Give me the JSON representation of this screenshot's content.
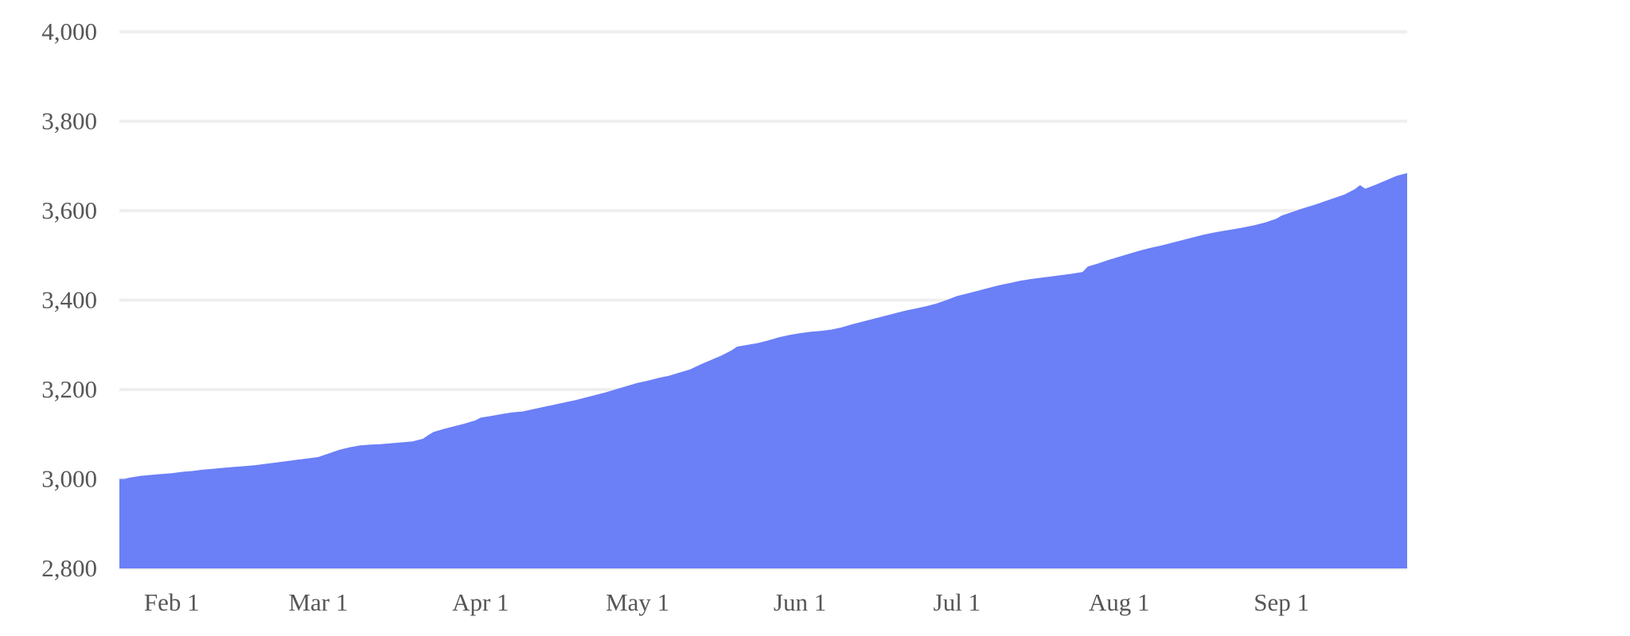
{
  "chart_data": {
    "type": "area",
    "title": "",
    "xlabel": "",
    "ylabel": "",
    "legend": null,
    "grid": "horizontal-only",
    "ylim": [
      2800,
      4000
    ],
    "y_ticks": [
      {
        "label": "4,000",
        "value": 4000
      },
      {
        "label": "3,800",
        "value": 3800
      },
      {
        "label": "3,600",
        "value": 3600
      },
      {
        "label": "3,400",
        "value": 3400
      },
      {
        "label": "3,200",
        "value": 3200
      },
      {
        "label": "3,000",
        "value": 3000
      },
      {
        "label": "2,800",
        "value": 2800
      }
    ],
    "x_ticks": [
      {
        "label": "Feb 1",
        "day": 10
      },
      {
        "label": "Mar 1",
        "day": 38
      },
      {
        "label": "Apr 1",
        "day": 69
      },
      {
        "label": "May 1",
        "day": 99
      },
      {
        "label": "Jun 1",
        "day": 130
      },
      {
        "label": "Jul 1",
        "day": 160
      },
      {
        "label": "Aug 1",
        "day": 191
      },
      {
        "label": "Sep 1",
        "day": 222
      }
    ],
    "x_range_days": [
      0,
      246
    ],
    "colors": {
      "area_fill": "#6B7FF7",
      "gridline": "#efefef",
      "axis_label": "#565656",
      "background": "#ffffff"
    },
    "series_name": "value",
    "points": [
      [
        0,
        3000
      ],
      [
        1,
        3000
      ],
      [
        2,
        3003
      ],
      [
        4,
        3007
      ],
      [
        6,
        3009
      ],
      [
        8,
        3011
      ],
      [
        10,
        3013
      ],
      [
        12,
        3016
      ],
      [
        14,
        3018
      ],
      [
        16,
        3021
      ],
      [
        18,
        3023
      ],
      [
        20,
        3025
      ],
      [
        22,
        3027
      ],
      [
        24,
        3029
      ],
      [
        26,
        3031
      ],
      [
        28,
        3034
      ],
      [
        30,
        3037
      ],
      [
        32,
        3040
      ],
      [
        34,
        3043
      ],
      [
        36,
        3046
      ],
      [
        38,
        3049
      ],
      [
        40,
        3057
      ],
      [
        42,
        3065
      ],
      [
        44,
        3071
      ],
      [
        46,
        3075
      ],
      [
        48,
        3077
      ],
      [
        50,
        3078
      ],
      [
        52,
        3080
      ],
      [
        54,
        3082
      ],
      [
        56,
        3084
      ],
      [
        58,
        3090
      ],
      [
        59,
        3098
      ],
      [
        60,
        3105
      ],
      [
        62,
        3112
      ],
      [
        64,
        3118
      ],
      [
        66,
        3124
      ],
      [
        68,
        3131
      ],
      [
        69,
        3137
      ],
      [
        71,
        3141
      ],
      [
        73,
        3145
      ],
      [
        75,
        3149
      ],
      [
        77,
        3151
      ],
      [
        79,
        3156
      ],
      [
        81,
        3161
      ],
      [
        83,
        3166
      ],
      [
        85,
        3171
      ],
      [
        87,
        3176
      ],
      [
        89,
        3182
      ],
      [
        91,
        3188
      ],
      [
        93,
        3194
      ],
      [
        95,
        3201
      ],
      [
        97,
        3208
      ],
      [
        99,
        3215
      ],
      [
        101,
        3220
      ],
      [
        103,
        3226
      ],
      [
        105,
        3231
      ],
      [
        107,
        3238
      ],
      [
        109,
        3245
      ],
      [
        111,
        3256
      ],
      [
        113,
        3266
      ],
      [
        115,
        3276
      ],
      [
        117,
        3288
      ],
      [
        118,
        3296
      ],
      [
        120,
        3300
      ],
      [
        122,
        3304
      ],
      [
        124,
        3310
      ],
      [
        126,
        3317
      ],
      [
        128,
        3322
      ],
      [
        130,
        3326
      ],
      [
        132,
        3329
      ],
      [
        134,
        3331
      ],
      [
        136,
        3334
      ],
      [
        138,
        3339
      ],
      [
        140,
        3346
      ],
      [
        142,
        3352
      ],
      [
        144,
        3358
      ],
      [
        146,
        3364
      ],
      [
        148,
        3370
      ],
      [
        150,
        3376
      ],
      [
        152,
        3381
      ],
      [
        154,
        3386
      ],
      [
        156,
        3392
      ],
      [
        158,
        3400
      ],
      [
        160,
        3409
      ],
      [
        162,
        3415
      ],
      [
        164,
        3421
      ],
      [
        166,
        3427
      ],
      [
        168,
        3433
      ],
      [
        170,
        3438
      ],
      [
        172,
        3443
      ],
      [
        174,
        3447
      ],
      [
        176,
        3450
      ],
      [
        178,
        3453
      ],
      [
        180,
        3456
      ],
      [
        182,
        3459
      ],
      [
        184,
        3463
      ],
      [
        185,
        3475
      ],
      [
        187,
        3482
      ],
      [
        189,
        3490
      ],
      [
        191,
        3497
      ],
      [
        193,
        3504
      ],
      [
        195,
        3511
      ],
      [
        197,
        3517
      ],
      [
        199,
        3522
      ],
      [
        201,
        3528
      ],
      [
        203,
        3534
      ],
      [
        205,
        3540
      ],
      [
        207,
        3546
      ],
      [
        209,
        3551
      ],
      [
        211,
        3555
      ],
      [
        213,
        3559
      ],
      [
        215,
        3563
      ],
      [
        217,
        3568
      ],
      [
        219,
        3574
      ],
      [
        221,
        3582
      ],
      [
        222,
        3589
      ],
      [
        224,
        3597
      ],
      [
        226,
        3605
      ],
      [
        228,
        3612
      ],
      [
        230,
        3620
      ],
      [
        232,
        3628
      ],
      [
        234,
        3636
      ],
      [
        236,
        3648
      ],
      [
        237,
        3657
      ],
      [
        238,
        3649
      ],
      [
        240,
        3658
      ],
      [
        242,
        3668
      ],
      [
        244,
        3678
      ],
      [
        246,
        3684
      ]
    ]
  }
}
